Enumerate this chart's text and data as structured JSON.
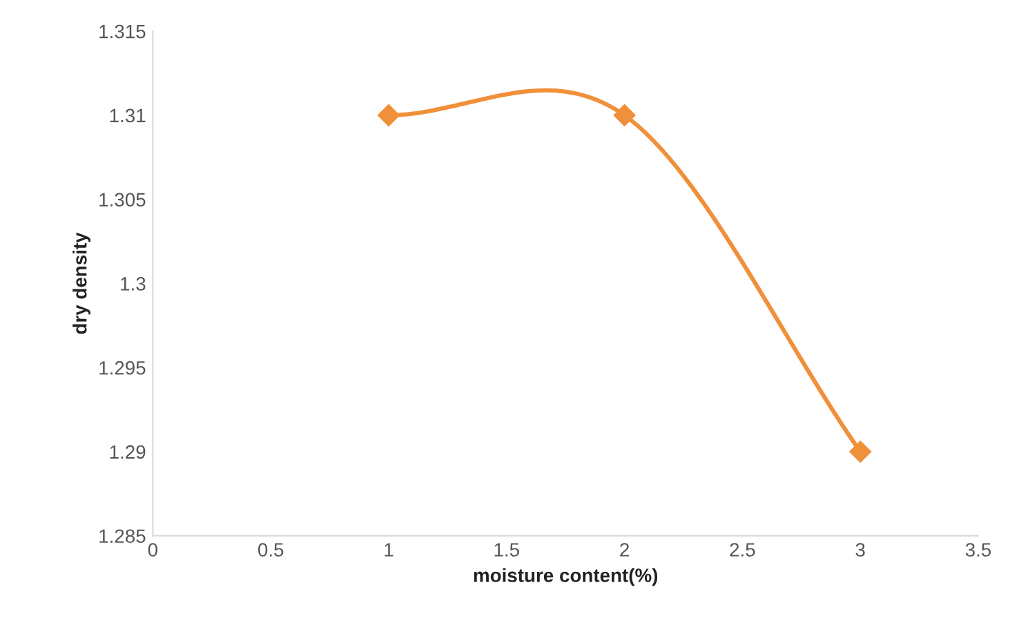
{
  "chart_data": {
    "type": "line",
    "xlabel": "moisture content(%)",
    "ylabel": "dry density",
    "x": [
      1,
      2,
      3
    ],
    "series": [
      {
        "color": "#f0903a",
        "values": [
          1.31,
          1.31,
          1.29
        ]
      }
    ],
    "xlim": [
      0,
      3.5
    ],
    "xticks": [
      0,
      0.5,
      1,
      1.5,
      2,
      2.5,
      3,
      3.5
    ],
    "ylim": [
      1.285,
      1.315
    ],
    "yticks": [
      1.285,
      1.29,
      1.295,
      1.3,
      1.305,
      1.31,
      1.315
    ],
    "marker": "diamond",
    "line_style": "solid",
    "grid": false,
    "legend": false
  }
}
